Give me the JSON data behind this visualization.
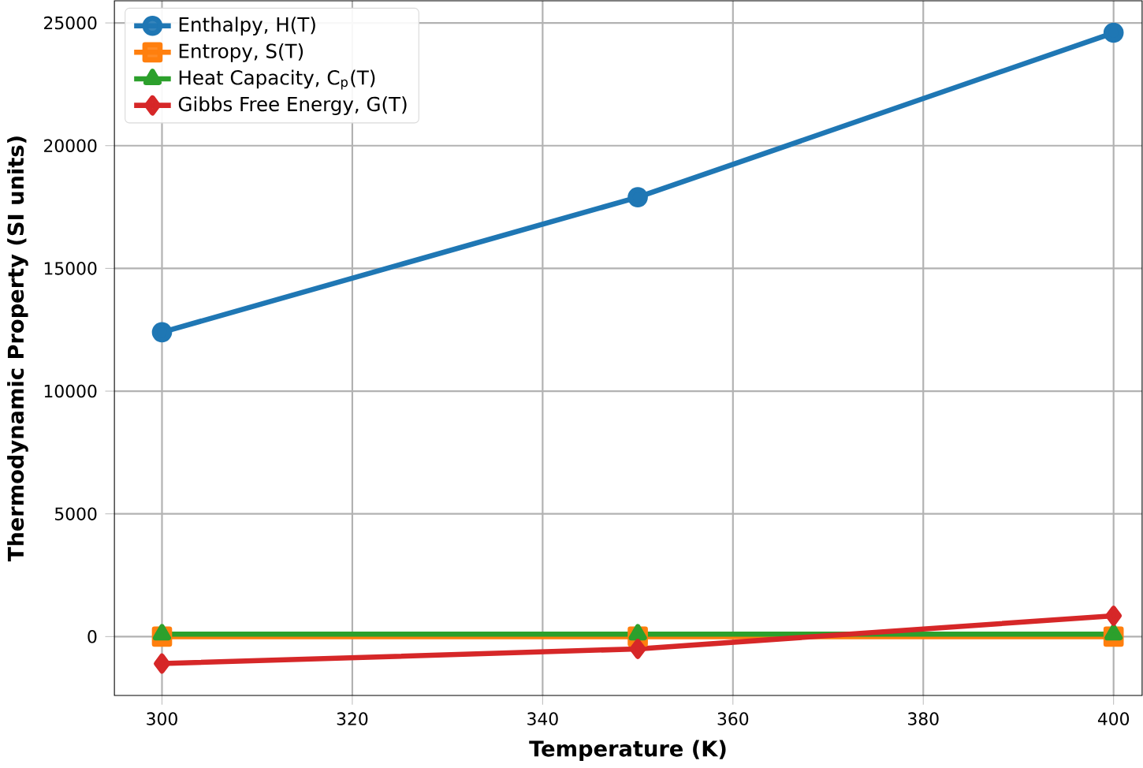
{
  "chart_data": {
    "type": "line",
    "xlabel": "Temperature (K)",
    "ylabel": "Thermodynamic Property (SI units)",
    "x": [
      300,
      350,
      400
    ],
    "series": [
      {
        "name": "Enthalpy, H(T)",
        "color": "#1f77b4",
        "marker": "circle",
        "values": [
          12400,
          17900,
          24600
        ]
      },
      {
        "name": "Entropy, S(T)",
        "color": "#ff7f0e",
        "marker": "square",
        "values": [
          0,
          0,
          0
        ]
      },
      {
        "name": "Heat Capacity, C$_{p}$(T)",
        "color": "#2ca02c",
        "marker": "triangle",
        "values": [
          100,
          100,
          100
        ]
      },
      {
        "name": "Gibbs Free Energy, G(T)",
        "color": "#d62728",
        "marker": "diamond",
        "values": [
          -1100,
          -500,
          850
        ]
      }
    ],
    "xlim": [
      295,
      403
    ],
    "ylim": [
      -2400,
      25900
    ],
    "xticks": [
      300,
      320,
      340,
      360,
      380,
      400
    ],
    "yticks": [
      0,
      5000,
      10000,
      15000,
      20000,
      25000
    ],
    "grid": true,
    "legend": "top left",
    "line_style": "solid"
  }
}
